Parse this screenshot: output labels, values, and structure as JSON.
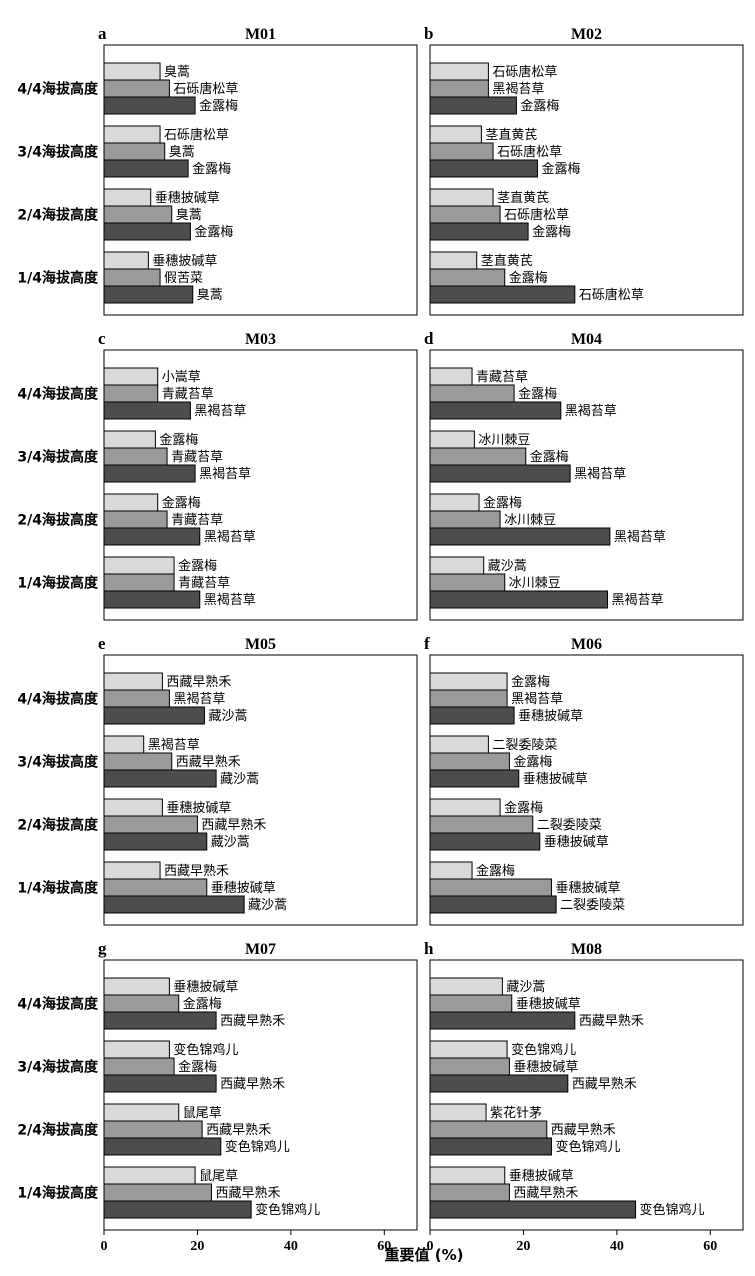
{
  "figure": {
    "xlabel": "重要值 (%)",
    "xticks": [
      0,
      20,
      40,
      60
    ],
    "xlim": [
      0,
      67
    ],
    "altitude_labels": [
      "4/4海拔高度",
      "3/4海拔高度",
      "2/4海拔高度",
      "1/4海拔高度"
    ],
    "bar_colors": [
      "#d9d9d9",
      "#9a9a9a",
      "#4d4d4d"
    ]
  },
  "chart_data": [
    {
      "type": "bar",
      "orientation": "horizontal",
      "panel_letter": "a",
      "title": "M01",
      "categories": [
        "4/4海拔高度",
        "3/4海拔高度",
        "2/4海拔高度",
        "1/4海拔高度"
      ],
      "groups": [
        {
          "category": "4/4海拔高度",
          "bars": [
            {
              "species": "臭蒿",
              "value": 12
            },
            {
              "species": "石砾唐松草",
              "value": 14
            },
            {
              "species": "金露梅",
              "value": 19.5
            }
          ]
        },
        {
          "category": "3/4海拔高度",
          "bars": [
            {
              "species": "石砾唐松草",
              "value": 12
            },
            {
              "species": "臭蒿",
              "value": 13
            },
            {
              "species": "金露梅",
              "value": 18
            }
          ]
        },
        {
          "category": "2/4海拔高度",
          "bars": [
            {
              "species": "垂穗披碱草",
              "value": 10
            },
            {
              "species": "臭蒿",
              "value": 14.5
            },
            {
              "species": "金露梅",
              "value": 18.5
            }
          ]
        },
        {
          "category": "1/4海拔高度",
          "bars": [
            {
              "species": "垂穗披碱草",
              "value": 9.5
            },
            {
              "species": "假苦菜",
              "value": 12
            },
            {
              "species": "臭蒿",
              "value": 19
            }
          ]
        }
      ]
    },
    {
      "type": "bar",
      "orientation": "horizontal",
      "panel_letter": "b",
      "title": "M02",
      "categories": [
        "4/4海拔高度",
        "3/4海拔高度",
        "2/4海拔高度",
        "1/4海拔高度"
      ],
      "groups": [
        {
          "category": "4/4海拔高度",
          "bars": [
            {
              "species": "石砾唐松草",
              "value": 12.5
            },
            {
              "species": "黑褐苔草",
              "value": 12.5
            },
            {
              "species": "金露梅",
              "value": 18.5
            }
          ]
        },
        {
          "category": "3/4海拔高度",
          "bars": [
            {
              "species": "茎直黄芪",
              "value": 11
            },
            {
              "species": "石砾唐松草",
              "value": 13.5
            },
            {
              "species": "金露梅",
              "value": 23
            }
          ]
        },
        {
          "category": "2/4海拔高度",
          "bars": [
            {
              "species": "茎直黄芪",
              "value": 13.5
            },
            {
              "species": "石砾唐松草",
              "value": 15
            },
            {
              "species": "金露梅",
              "value": 21
            }
          ]
        },
        {
          "category": "1/4海拔高度",
          "bars": [
            {
              "species": "茎直黄芪",
              "value": 10
            },
            {
              "species": "金露梅",
              "value": 16
            },
            {
              "species": "石砾唐松草",
              "value": 31
            }
          ]
        }
      ]
    },
    {
      "type": "bar",
      "orientation": "horizontal",
      "panel_letter": "c",
      "title": "M03",
      "categories": [
        "4/4海拔高度",
        "3/4海拔高度",
        "2/4海拔高度",
        "1/4海拔高度"
      ],
      "groups": [
        {
          "category": "4/4海拔高度",
          "bars": [
            {
              "species": "小嵩草",
              "value": 11.5
            },
            {
              "species": "青藏苔草",
              "value": 11.5
            },
            {
              "species": "黑褐苔草",
              "value": 18.5
            }
          ]
        },
        {
          "category": "3/4海拔高度",
          "bars": [
            {
              "species": "金露梅",
              "value": 11
            },
            {
              "species": "青藏苔草",
              "value": 13.5
            },
            {
              "species": "黑褐苔草",
              "value": 19.5
            }
          ]
        },
        {
          "category": "2/4海拔高度",
          "bars": [
            {
              "species": "金露梅",
              "value": 11.5
            },
            {
              "species": "青藏苔草",
              "value": 13.5
            },
            {
              "species": "黑褐苔草",
              "value": 20.5
            }
          ]
        },
        {
          "category": "1/4海拔高度",
          "bars": [
            {
              "species": "金露梅",
              "value": 15
            },
            {
              "species": "青藏苔草",
              "value": 15
            },
            {
              "species": "黑褐苔草",
              "value": 20.5
            }
          ]
        }
      ]
    },
    {
      "type": "bar",
      "orientation": "horizontal",
      "panel_letter": "d",
      "title": "M04",
      "categories": [
        "4/4海拔高度",
        "3/4海拔高度",
        "2/4海拔高度",
        "1/4海拔高度"
      ],
      "groups": [
        {
          "category": "4/4海拔高度",
          "bars": [
            {
              "species": "青藏苔草",
              "value": 9
            },
            {
              "species": "金露梅",
              "value": 18
            },
            {
              "species": "黑褐苔草",
              "value": 28
            }
          ]
        },
        {
          "category": "3/4海拔高度",
          "bars": [
            {
              "species": "冰川棘豆",
              "value": 9.5
            },
            {
              "species": "金露梅",
              "value": 20.5
            },
            {
              "species": "黑褐苔草",
              "value": 30
            }
          ]
        },
        {
          "category": "2/4海拔高度",
          "bars": [
            {
              "species": "金露梅",
              "value": 10.5
            },
            {
              "species": "冰川棘豆",
              "value": 15
            },
            {
              "species": "黑褐苔草",
              "value": 38.5
            }
          ]
        },
        {
          "category": "1/4海拔高度",
          "bars": [
            {
              "species": "藏沙蒿",
              "value": 11.5
            },
            {
              "species": "冰川棘豆",
              "value": 16
            },
            {
              "species": "黑褐苔草",
              "value": 38
            }
          ]
        }
      ]
    },
    {
      "type": "bar",
      "orientation": "horizontal",
      "panel_letter": "e",
      "title": "M05",
      "categories": [
        "4/4海拔高度",
        "3/4海拔高度",
        "2/4海拔高度",
        "1/4海拔高度"
      ],
      "groups": [
        {
          "category": "4/4海拔高度",
          "bars": [
            {
              "species": "西藏早熟禾",
              "value": 12.5
            },
            {
              "species": "黑褐苔草",
              "value": 14
            },
            {
              "species": "藏沙蒿",
              "value": 21.5
            }
          ]
        },
        {
          "category": "3/4海拔高度",
          "bars": [
            {
              "species": "黑褐苔草",
              "value": 8.5
            },
            {
              "species": "西藏早熟禾",
              "value": 14.5
            },
            {
              "species": "藏沙蒿",
              "value": 24
            }
          ]
        },
        {
          "category": "2/4海拔高度",
          "bars": [
            {
              "species": "垂穗披碱草",
              "value": 12.5
            },
            {
              "species": "西藏早熟禾",
              "value": 20
            },
            {
              "species": "藏沙蒿",
              "value": 22
            }
          ]
        },
        {
          "category": "1/4海拔高度",
          "bars": [
            {
              "species": "西藏早熟禾",
              "value": 12
            },
            {
              "species": "垂穗披碱草",
              "value": 22
            },
            {
              "species": "藏沙蒿",
              "value": 30
            }
          ]
        }
      ]
    },
    {
      "type": "bar",
      "orientation": "horizontal",
      "panel_letter": "f",
      "title": "M06",
      "categories": [
        "4/4海拔高度",
        "3/4海拔高度",
        "2/4海拔高度",
        "1/4海拔高度"
      ],
      "groups": [
        {
          "category": "4/4海拔高度",
          "bars": [
            {
              "species": "金露梅",
              "value": 16.5
            },
            {
              "species": "黑褐苔草",
              "value": 16.5
            },
            {
              "species": "垂穗披碱草",
              "value": 18
            }
          ]
        },
        {
          "category": "3/4海拔高度",
          "bars": [
            {
              "species": "二裂委陵菜",
              "value": 12.5
            },
            {
              "species": "金露梅",
              "value": 17
            },
            {
              "species": "垂穗披碱草",
              "value": 19
            }
          ]
        },
        {
          "category": "2/4海拔高度",
          "bars": [
            {
              "species": "金露梅",
              "value": 15
            },
            {
              "species": "二裂委陵菜",
              "value": 22
            },
            {
              "species": "垂穗披碱草",
              "value": 23.5
            }
          ]
        },
        {
          "category": "1/4海拔高度",
          "bars": [
            {
              "species": "金露梅",
              "value": 9
            },
            {
              "species": "垂穗披碱草",
              "value": 26
            },
            {
              "species": "二裂委陵菜",
              "value": 27
            }
          ]
        }
      ]
    },
    {
      "type": "bar",
      "orientation": "horizontal",
      "panel_letter": "g",
      "title": "M07",
      "categories": [
        "4/4海拔高度",
        "3/4海拔高度",
        "2/4海拔高度",
        "1/4海拔高度"
      ],
      "groups": [
        {
          "category": "4/4海拔高度",
          "bars": [
            {
              "species": "垂穗披碱草",
              "value": 14
            },
            {
              "species": "金露梅",
              "value": 16
            },
            {
              "species": "西藏早熟禾",
              "value": 24
            }
          ]
        },
        {
          "category": "3/4海拔高度",
          "bars": [
            {
              "species": "变色锦鸡儿",
              "value": 14
            },
            {
              "species": "金露梅",
              "value": 15
            },
            {
              "species": "西藏早熟禾",
              "value": 24
            }
          ]
        },
        {
          "category": "2/4海拔高度",
          "bars": [
            {
              "species": "鼠尾草",
              "value": 16
            },
            {
              "species": "西藏早熟禾",
              "value": 21
            },
            {
              "species": "变色锦鸡儿",
              "value": 25
            }
          ]
        },
        {
          "category": "1/4海拔高度",
          "bars": [
            {
              "species": "鼠尾草",
              "value": 19.5
            },
            {
              "species": "西藏早熟禾",
              "value": 23
            },
            {
              "species": "变色锦鸡儿",
              "value": 31.5
            }
          ]
        }
      ]
    },
    {
      "type": "bar",
      "orientation": "horizontal",
      "panel_letter": "h",
      "title": "M08",
      "categories": [
        "4/4海拔高度",
        "3/4海拔高度",
        "2/4海拔高度",
        "1/4海拔高度"
      ],
      "groups": [
        {
          "category": "4/4海拔高度",
          "bars": [
            {
              "species": "藏沙蒿",
              "value": 15.5
            },
            {
              "species": "垂穗披碱草",
              "value": 17.5
            },
            {
              "species": "西藏早熟禾",
              "value": 31
            }
          ]
        },
        {
          "category": "3/4海拔高度",
          "bars": [
            {
              "species": "变色锦鸡儿",
              "value": 16.5
            },
            {
              "species": "垂穗披碱草",
              "value": 17
            },
            {
              "species": "西藏早熟禾",
              "value": 29.5
            }
          ]
        },
        {
          "category": "2/4海拔高度",
          "bars": [
            {
              "species": "紫花针茅",
              "value": 12
            },
            {
              "species": "西藏早熟禾",
              "value": 25
            },
            {
              "species": "变色锦鸡儿",
              "value": 26
            }
          ]
        },
        {
          "category": "1/4海拔高度",
          "bars": [
            {
              "species": "垂穗披碱草",
              "value": 16
            },
            {
              "species": "西藏早熟禾",
              "value": 17
            },
            {
              "species": "变色锦鸡儿",
              "value": 44
            }
          ]
        }
      ]
    }
  ]
}
